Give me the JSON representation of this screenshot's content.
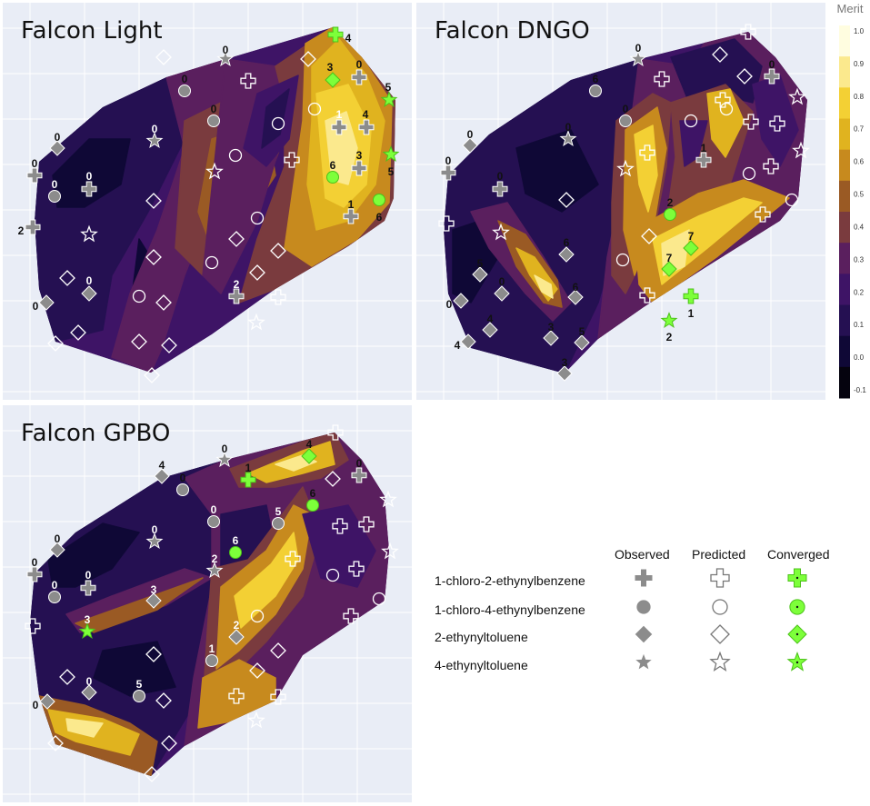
{
  "colors": {
    "observed": "#8c8c8c",
    "predicted_stroke": "#8c8c8c",
    "converged": "#7dff3a",
    "background": "#e9edf6"
  },
  "colorscale": {
    "title": "Merit",
    "ticks": [
      "1.0",
      "0.9",
      "0.8",
      "0.7",
      "0.6",
      "0.5",
      "0.4",
      "0.3",
      "0.2",
      "0.1",
      "0.0",
      "-0.1"
    ],
    "colors": [
      "#fffde0",
      "#fbe98d",
      "#f3d034",
      "#e0b31f",
      "#c78a1e",
      "#9a5a24",
      "#7a3b3e",
      "#5a1f5e",
      "#3e1466",
      "#251052",
      "#0f0836",
      "#05030e"
    ]
  },
  "legend": {
    "headers": [
      "Observed",
      "Predicted",
      "Converged"
    ],
    "rows": [
      {
        "label": "1-chloro-2-ethynylbenzene",
        "icon": "plus-icon"
      },
      {
        "label": "1-chloro-4-ethynylbenzene",
        "icon": "circle-icon"
      },
      {
        "label": "2-ethynyltoluene",
        "icon": "diamond-icon"
      },
      {
        "label": "4-ethynyltoluene",
        "icon": "star-icon"
      }
    ]
  },
  "chart_data": [
    {
      "type": "scatter",
      "title": "Falcon Light",
      "observed_labels": [
        "4",
        "0",
        "3",
        "0",
        "5",
        "1",
        "4",
        "0",
        "0",
        "3",
        "5",
        "6",
        "0",
        "0",
        "1",
        "6",
        "0",
        "2",
        "0",
        "2",
        "0"
      ],
      "converged_labels": [
        "4",
        "3",
        "5",
        "5",
        "6",
        "6"
      ]
    },
    {
      "type": "scatter",
      "title": "Falcon DNGO",
      "observed_labels": [
        "0",
        "6",
        "0",
        "0",
        "0",
        "1",
        "0",
        "0",
        "0",
        "2",
        "6",
        "7",
        "5",
        "0",
        "7",
        "6",
        "0",
        "4",
        "3",
        "5",
        "1",
        "4",
        "3",
        "2"
      ],
      "converged_labels": [
        "2",
        "7",
        "7",
        "1",
        "2"
      ]
    },
    {
      "type": "scatter",
      "title": "Falcon GPBO",
      "observed_labels": [
        "4",
        "0",
        "4",
        "0",
        "1",
        "0",
        "6",
        "0",
        "5",
        "0",
        "2",
        "6",
        "0",
        "0",
        "3",
        "3",
        "2",
        "1",
        "0",
        "5",
        "0"
      ],
      "converged_labels": [
        "4",
        "1",
        "6",
        "6",
        "3"
      ]
    }
  ]
}
